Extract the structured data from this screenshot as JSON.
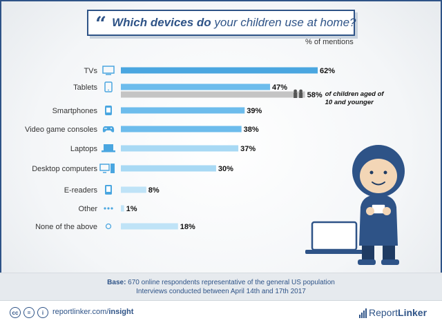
{
  "title": {
    "prefix": "Which devices do",
    "rest": " your children use at home?"
  },
  "unit_label": "% of mentions",
  "chart_data": {
    "type": "bar",
    "orientation": "horizontal",
    "title": "Which devices do your children use at home?",
    "xlabel": "% of mentions",
    "xlim": [
      0,
      62
    ],
    "categories": [
      "TVs",
      "Tablets",
      "Smartphones",
      "Video game consoles",
      "Laptops",
      "Desktop computers",
      "E-readers",
      "Other",
      "None of the above"
    ],
    "series": [
      {
        "values": [
          62,
          47,
          39,
          38,
          37,
          30,
          8,
          1,
          18
        ]
      }
    ],
    "value_labels": [
      "62%",
      "47%",
      "39%",
      "38%",
      "37%",
      "30%",
      "8%",
      "1%",
      "18%"
    ],
    "sub_bar": {
      "category": "Tablets",
      "value": 58,
      "label": "58%",
      "note_lines": [
        "of children aged of",
        "10 and younger"
      ]
    },
    "icons": [
      "tv-icon",
      "tablet-icon",
      "smartphone-icon",
      "gamepad-icon",
      "laptop-icon",
      "desktop-icon",
      "ereader-icon",
      "dots-icon",
      "circle-icon"
    ],
    "colors": {
      "bar_dark": "#4aa6e0",
      "bar_mid": "#6dbcec",
      "bar_light": "#a8d9f4",
      "bar_lighter": "#bfe3f7",
      "sub_bar": "#c4c4c4",
      "icon": "#4aa6e0"
    }
  },
  "base": {
    "label": "Base:",
    "line1": " 670 online respondents representative of the general US population",
    "line2": "Interviews conducted between April 14th and 17th 2017"
  },
  "footer": {
    "cc_icons": [
      "cc",
      "=",
      "i"
    ],
    "link_prefix": "reportlinker.com/",
    "link_bold": "insight",
    "brand_light": "Report",
    "brand_bold": "Linker"
  }
}
